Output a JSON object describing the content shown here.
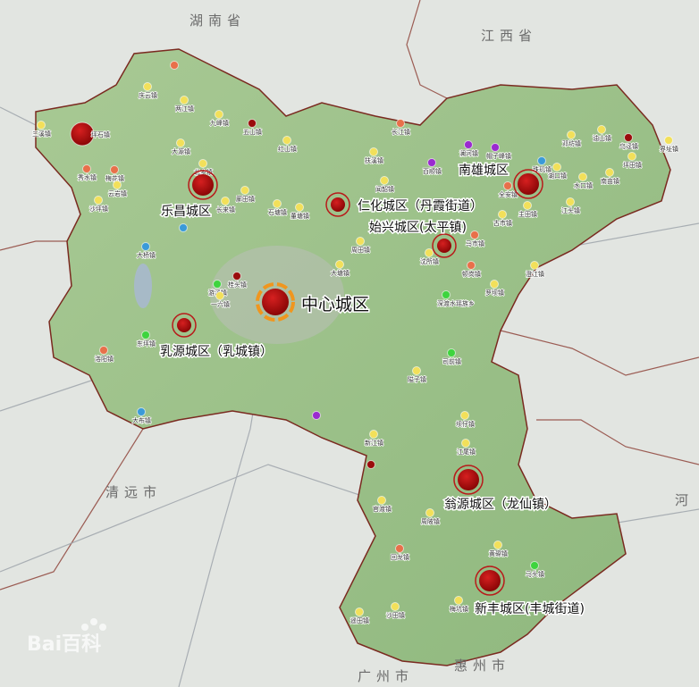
{
  "colors": {
    "background": "#e4e7e3",
    "region_fill": "#9fc48e",
    "border": "#7a2a20",
    "district": "#a50c0c",
    "center_ring": "#f0961e",
    "yellow": "#f2e05a",
    "orange": "#e8704a",
    "darkred": "#9a0c0c",
    "blue": "#3a9ad8",
    "green": "#3ed43e",
    "purple": "#9a2ad0"
  },
  "neighbors": {
    "hunan": "湖南省",
    "jiangxi": "江西省",
    "qingyuan": "清远市",
    "guangzhou": "广州市",
    "huizhou": "惠州市",
    "heyuan": "河"
  },
  "districts": {
    "center": "中心城区",
    "lechang": "乐昌城区",
    "renhua": "仁化城区（丹霞街道）",
    "nanxiong": "南雄城区",
    "shixing": "始兴城区(太平镇)",
    "ruyuan": "乳源城区（乳城镇）",
    "wengyuan": "翁源城区（龙仙镇）",
    "xinfeng": "新丰城区(丰城街道)"
  },
  "towns": [
    {
      "name": "三溪镇",
      "type": "yellow"
    },
    {
      "name": "坪石镇",
      "type": "darkred"
    },
    {
      "name": "庆云镇",
      "type": "yellow"
    },
    {
      "name": "两江镇",
      "type": "yellow"
    },
    {
      "name": "九峰镇",
      "type": "yellow"
    },
    {
      "name": "五山镇",
      "type": "darkred"
    },
    {
      "name": "红山镇",
      "type": "yellow"
    },
    {
      "name": "大源镇",
      "type": "yellow"
    },
    {
      "name": "北乡镇",
      "type": "yellow"
    },
    {
      "name": "梅花镇",
      "type": "orange"
    },
    {
      "name": "秀水镇",
      "type": "orange"
    },
    {
      "name": "云岩镇",
      "type": "yellow"
    },
    {
      "name": "沙坪镇",
      "type": "yellow"
    },
    {
      "name": "长来镇",
      "type": "yellow"
    },
    {
      "name": "廊田镇",
      "type": "yellow"
    },
    {
      "name": "石塘镇",
      "type": "yellow"
    },
    {
      "name": "董塘镇",
      "type": "yellow"
    },
    {
      "name": "大桥镇",
      "type": "blue"
    },
    {
      "name": "桂头镇",
      "type": "darkred"
    },
    {
      "name": "东坪镇",
      "type": "green"
    },
    {
      "name": "洛阳镇",
      "type": "orange"
    },
    {
      "name": "大布镇",
      "type": "blue"
    },
    {
      "name": "游溪镇",
      "type": "green"
    },
    {
      "name": "一六镇",
      "type": "yellow"
    },
    {
      "name": "大塘镇",
      "type": "yellow"
    },
    {
      "name": "长江镇",
      "type": "orange"
    },
    {
      "name": "扶溪镇",
      "type": "yellow"
    },
    {
      "name": "闻韶镇",
      "type": "yellow"
    },
    {
      "name": "澜河镇",
      "type": "purple"
    },
    {
      "name": "帽子峰镇",
      "type": "purple"
    },
    {
      "name": "百顺镇",
      "type": "purple"
    },
    {
      "name": "珠玑镇",
      "type": "blue"
    },
    {
      "name": "湖口镇",
      "type": "yellow"
    },
    {
      "name": "邓坊镇",
      "type": "yellow"
    },
    {
      "name": "油山镇",
      "type": "yellow"
    },
    {
      "name": "乌迳镇",
      "type": "darkred"
    },
    {
      "name": "界址镇",
      "type": "yellow"
    },
    {
      "name": "坪田镇",
      "type": "yellow"
    },
    {
      "name": "南亩镇",
      "type": "yellow"
    },
    {
      "name": "水口镇",
      "type": "yellow"
    },
    {
      "name": "全安镇",
      "type": "orange"
    },
    {
      "name": "古市镇",
      "type": "yellow"
    },
    {
      "name": "主田镇",
      "type": "yellow"
    },
    {
      "name": "江头镇",
      "type": "yellow"
    },
    {
      "name": "周田镇",
      "type": "yellow"
    },
    {
      "name": "马市镇",
      "type": "orange"
    },
    {
      "name": "沈所镇",
      "type": "yellow"
    },
    {
      "name": "顿岗镇",
      "type": "orange"
    },
    {
      "name": "罗坝镇",
      "type": "yellow"
    },
    {
      "name": "澄江镇",
      "type": "yellow"
    },
    {
      "name": "深渡水瑶族乡",
      "type": "green"
    },
    {
      "name": "司前镇",
      "type": "green"
    },
    {
      "name": "隘子镇",
      "type": "yellow"
    },
    {
      "name": "坝仔镇",
      "type": "yellow"
    },
    {
      "name": "新江镇",
      "type": "yellow"
    },
    {
      "name": "江尾镇",
      "type": "yellow"
    },
    {
      "name": "官渡镇",
      "type": "yellow"
    },
    {
      "name": "周陂镇",
      "type": "yellow"
    },
    {
      "name": "黄磜镇",
      "type": "yellow"
    },
    {
      "name": "回龙镇",
      "type": "orange"
    },
    {
      "name": "马头镇",
      "type": "green"
    },
    {
      "name": "遥田镇",
      "type": "yellow"
    },
    {
      "name": "沙田镇",
      "type": "yellow"
    },
    {
      "name": "梅坑镇",
      "type": "yellow"
    },
    {
      "name": "",
      "type": "darkred"
    },
    {
      "name": "",
      "type": "purple"
    },
    {
      "name": "",
      "type": "blue"
    },
    {
      "name": "",
      "type": "orange"
    }
  ],
  "watermark": "Bai百科"
}
